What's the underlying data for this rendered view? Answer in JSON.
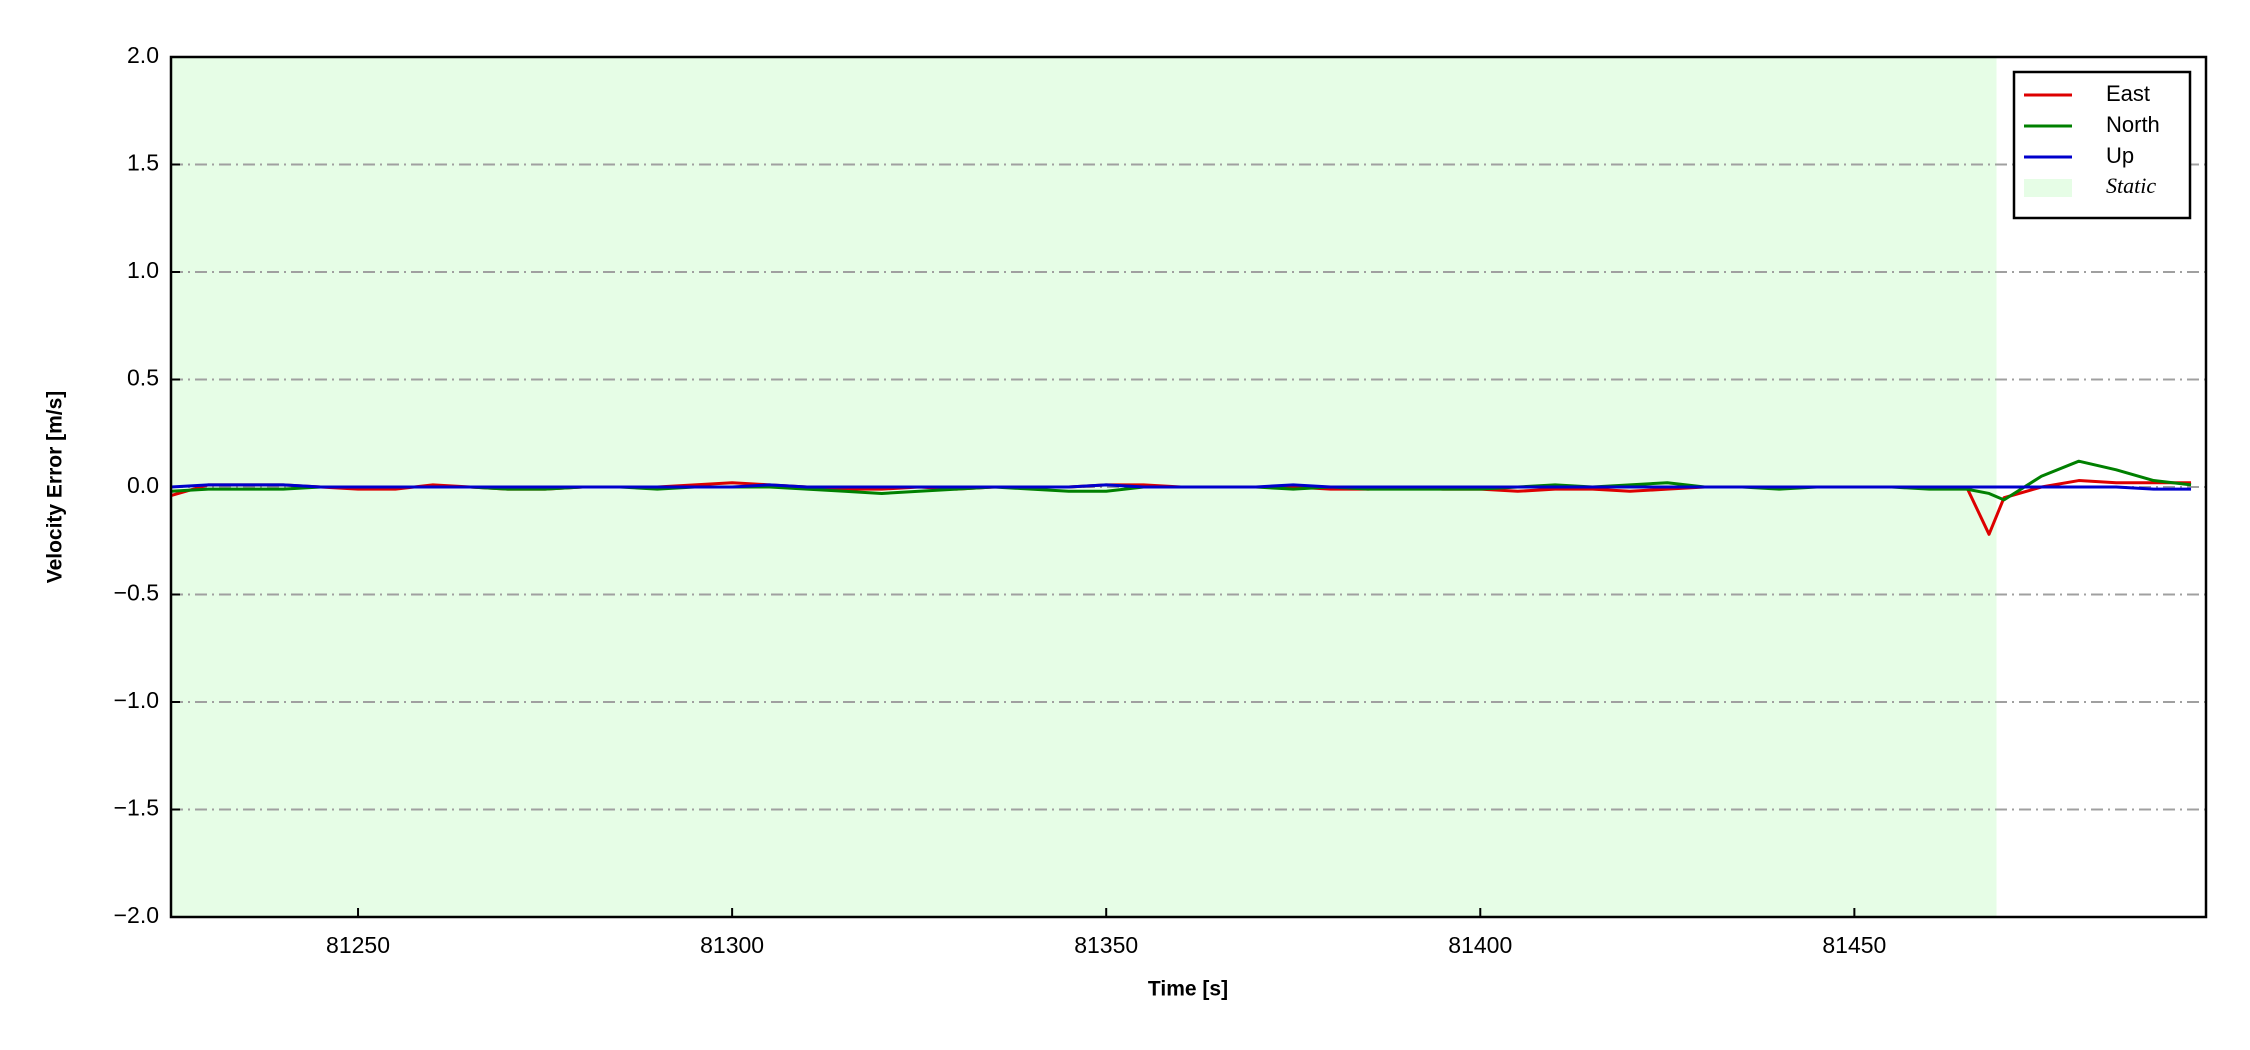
{
  "chart_data": {
    "type": "line",
    "xlabel": "Time [s]",
    "ylabel": "Velocity Error [m/s]",
    "x": [
      81225,
      81230,
      81235,
      81240,
      81245,
      81250,
      81255,
      81260,
      81265,
      81270,
      81275,
      81280,
      81285,
      81290,
      81295,
      81300,
      81305,
      81310,
      81315,
      81320,
      81325,
      81330,
      81335,
      81340,
      81345,
      81350,
      81355,
      81360,
      81365,
      81370,
      81375,
      81380,
      81385,
      81390,
      81395,
      81400,
      81405,
      81410,
      81415,
      81420,
      81425,
      81430,
      81435,
      81440,
      81445,
      81450,
      81455,
      81460,
      81465,
      81468,
      81470,
      81475,
      81480,
      81485,
      81490,
      81495
    ],
    "series": [
      {
        "name": "East",
        "color": "#dd0000",
        "values": [
          -0.04,
          0.01,
          0.01,
          0.01,
          0.0,
          -0.01,
          -0.01,
          0.01,
          0.0,
          -0.01,
          -0.01,
          0.0,
          0.0,
          0.0,
          0.01,
          0.02,
          0.01,
          0.0,
          -0.01,
          -0.01,
          0.0,
          -0.01,
          0.0,
          0.0,
          0.0,
          0.01,
          0.01,
          0.0,
          0.0,
          0.0,
          0.0,
          -0.01,
          -0.01,
          0.0,
          -0.01,
          -0.01,
          -0.02,
          -0.01,
          -0.01,
          -0.02,
          -0.01,
          0.0,
          0.0,
          0.0,
          0.0,
          0.0,
          0.0,
          0.0,
          0.0,
          -0.22,
          -0.05,
          0.0,
          0.03,
          0.02,
          0.02,
          0.02
        ]
      },
      {
        "name": "North",
        "color": "#008000",
        "values": [
          -0.02,
          -0.01,
          -0.01,
          -0.01,
          0.0,
          0.0,
          0.0,
          0.0,
          0.0,
          -0.01,
          -0.01,
          0.0,
          0.0,
          -0.01,
          0.0,
          0.0,
          0.0,
          -0.01,
          -0.02,
          -0.03,
          -0.02,
          -0.01,
          0.0,
          -0.01,
          -0.02,
          -0.02,
          0.0,
          0.0,
          0.0,
          0.0,
          -0.01,
          0.0,
          -0.01,
          -0.01,
          -0.01,
          -0.01,
          0.0,
          0.01,
          0.0,
          0.01,
          0.02,
          0.0,
          0.0,
          -0.01,
          0.0,
          0.0,
          0.0,
          -0.01,
          -0.01,
          -0.03,
          -0.06,
          0.05,
          0.12,
          0.08,
          0.03,
          0.01
        ]
      },
      {
        "name": "Up",
        "color": "#0000cc",
        "values": [
          0.0,
          0.01,
          0.01,
          0.01,
          0.0,
          0.0,
          0.0,
          0.0,
          0.0,
          0.0,
          0.0,
          0.0,
          0.0,
          0.0,
          0.0,
          0.0,
          0.01,
          0.0,
          0.0,
          0.0,
          0.0,
          0.0,
          0.0,
          0.0,
          0.0,
          0.01,
          0.0,
          0.0,
          0.0,
          0.0,
          0.01,
          0.0,
          0.0,
          0.0,
          0.0,
          0.0,
          0.0,
          0.0,
          0.0,
          0.0,
          0.0,
          0.0,
          0.0,
          0.0,
          0.0,
          0.0,
          0.0,
          0.0,
          0.0,
          0.0,
          0.0,
          0.0,
          0.0,
          0.0,
          -0.01,
          -0.01
        ]
      }
    ],
    "spans": [
      {
        "name": "Static",
        "xmin": 81225,
        "xmax": 81469,
        "color": "#e6fde6"
      }
    ],
    "xlim": [
      81225,
      81497
    ],
    "ylim": [
      -2,
      2
    ],
    "xticks": [
      81250,
      81300,
      81350,
      81400,
      81450
    ],
    "yticks": [
      {
        "value": -2,
        "label": "−2.0"
      },
      {
        "value": -1.5,
        "label": "−1.5"
      },
      {
        "value": -1,
        "label": "−1.0"
      },
      {
        "value": -0.5,
        "label": "−0.5"
      },
      {
        "value": 0,
        "label": "0.0"
      },
      {
        "value": 0.5,
        "label": "0.5"
      },
      {
        "value": 1,
        "label": "1.0"
      },
      {
        "value": 1.5,
        "label": "1.5"
      },
      {
        "value": 2,
        "label": "2.0"
      }
    ],
    "grid": true,
    "legend": "upper right"
  }
}
